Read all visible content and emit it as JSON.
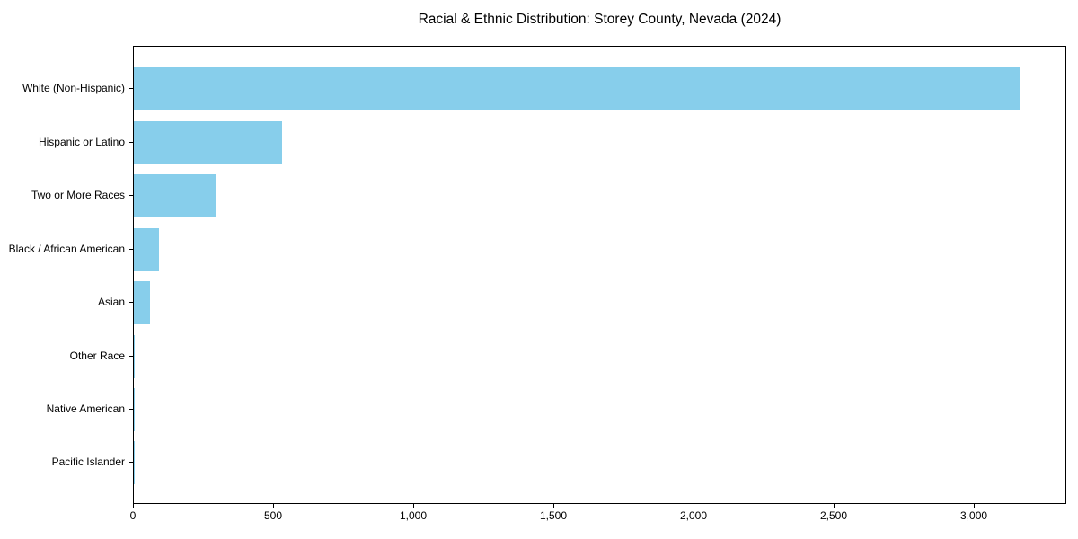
{
  "chart_data": {
    "type": "bar",
    "orientation": "horizontal",
    "title": "Racial & Ethnic Distribution: Storey County, Nevada (2024)",
    "xlabel": "",
    "ylabel": "",
    "categories": [
      "White (Non-Hispanic)",
      "Hispanic or Latino",
      "Two or More Races",
      "Black / African American",
      "Asian",
      "Other Race",
      "Native American",
      "Pacific Islander"
    ],
    "values": [
      3167,
      531,
      295,
      90,
      58,
      4,
      2,
      1
    ],
    "xlim": [
      0,
      3330
    ],
    "x_ticks": [
      0,
      500,
      1000,
      1500,
      2000,
      2500,
      3000
    ],
    "x_tick_labels": [
      "0",
      "500",
      "1,000",
      "1,500",
      "2,000",
      "2,500",
      "3,000"
    ],
    "bar_color": "#87CEEB",
    "axis_color": "#000000",
    "grid": false,
    "legend": null
  }
}
